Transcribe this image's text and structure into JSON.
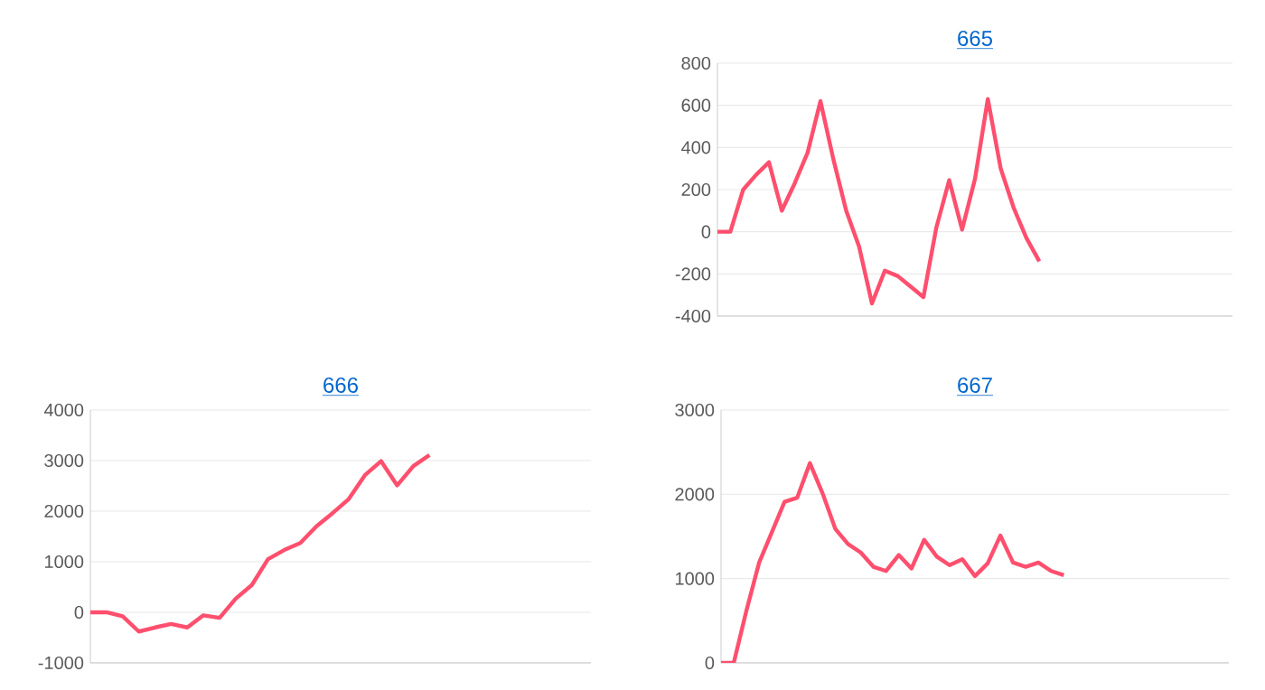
{
  "chart_data": [
    {
      "type": "line",
      "title": "665",
      "categories": [
        null,
        null,
        null,
        null,
        null,
        null,
        null,
        null,
        null,
        null,
        null,
        null,
        null,
        null,
        null,
        null,
        null,
        null,
        null,
        null,
        null,
        null,
        null,
        null,
        null,
        null,
        null,
        null,
        null,
        null,
        null,
        null,
        null,
        null,
        null,
        null,
        null,
        null,
        null,
        null,
        null
      ],
      "values": [
        0,
        0,
        200,
        270,
        330,
        100,
        230,
        375,
        620,
        345,
        100,
        -70,
        -340,
        -185,
        -210,
        -260,
        -310,
        20,
        245,
        10,
        250,
        630,
        300,
        115,
        -30,
        -140,
        null,
        null,
        null,
        null,
        null,
        null,
        null,
        null,
        null,
        null,
        null,
        null,
        null,
        null,
        null
      ],
      "color": "#ff4f6e",
      "ylim": [
        -400,
        800
      ],
      "yticks": [
        -400,
        -200,
        0,
        200,
        400,
        600,
        800
      ],
      "grid": "y",
      "tick_labels": "y"
    },
    {
      "type": "line",
      "title": "666",
      "categories": [
        null,
        null,
        null,
        null,
        null,
        null,
        null,
        null,
        null,
        null,
        null,
        null,
        null,
        null,
        null,
        null,
        null,
        null,
        null,
        null,
        null,
        null,
        null,
        null,
        null,
        null,
        null,
        null,
        null,
        null,
        null,
        null
      ],
      "values": [
        0,
        0,
        -80,
        -380,
        -300,
        -230,
        -300,
        -60,
        -110,
        270,
        540,
        1050,
        1230,
        1370,
        1700,
        1960,
        2240,
        2710,
        2990,
        2510,
        2890,
        3110,
        null,
        null,
        null,
        null,
        null,
        null,
        null,
        null,
        null,
        null
      ],
      "color": "#ff4f6e",
      "ylim": [
        -1000,
        4000
      ],
      "yticks": [
        -1000,
        0,
        1000,
        2000,
        3000,
        4000
      ],
      "grid": "y",
      "tick_labels": "y"
    },
    {
      "type": "line",
      "title": "667",
      "categories": [
        null,
        null,
        null,
        null,
        null,
        null,
        null,
        null,
        null,
        null,
        null,
        null,
        null,
        null,
        null,
        null,
        null,
        null,
        null,
        null,
        null,
        null,
        null,
        null,
        null,
        null,
        null,
        null,
        null,
        null,
        null,
        null,
        null,
        null,
        null,
        null,
        null,
        null,
        null,
        null,
        null
      ],
      "values": [
        0,
        0,
        620,
        1190,
        1550,
        1910,
        1960,
        2370,
        2010,
        1590,
        1410,
        1310,
        1140,
        1090,
        1280,
        1120,
        1460,
        1260,
        1160,
        1230,
        1030,
        1180,
        1510,
        1190,
        1140,
        1190,
        1090,
        1040,
        null,
        null,
        null,
        null,
        null,
        null,
        null,
        null,
        null,
        null,
        null,
        null,
        null
      ],
      "color": "#ff4f6e",
      "ylim": [
        0,
        3000
      ],
      "yticks": [
        0,
        1000,
        2000,
        3000
      ],
      "grid": "y",
      "tick_labels": "y"
    }
  ]
}
